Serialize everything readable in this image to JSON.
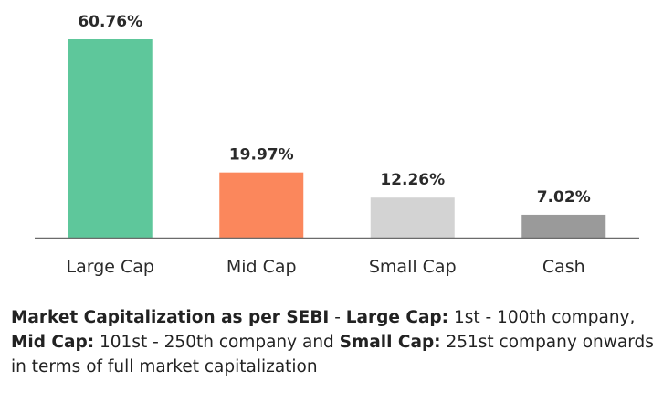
{
  "chart_data": {
    "type": "bar",
    "categories": [
      "Large Cap",
      "Mid Cap",
      "Small Cap",
      "Cash"
    ],
    "values": [
      60.76,
      19.97,
      12.26,
      7.02
    ],
    "value_labels": [
      "60.76%",
      "19.97%",
      "12.26%",
      "7.02%"
    ],
    "colors": [
      "#5ec79b",
      "#fb875c",
      "#d3d3d3",
      "#9a9a9a"
    ],
    "axis_color": "#6b6b6b",
    "ylim": [
      0,
      60.76
    ],
    "grid": false,
    "legend": "none"
  },
  "footnote": {
    "part1_bold": "Market Capitalization as per SEBI",
    "part2": " - ",
    "part3_bold": "Large Cap:",
    "part4": " 1st - 100th company, ",
    "part5_bold": "Mid Cap:",
    "part6": " 101st - 250th company and ",
    "part7_bold": "Small Cap:",
    "part8": " 251st company onwards in terms of full market capitalization"
  }
}
